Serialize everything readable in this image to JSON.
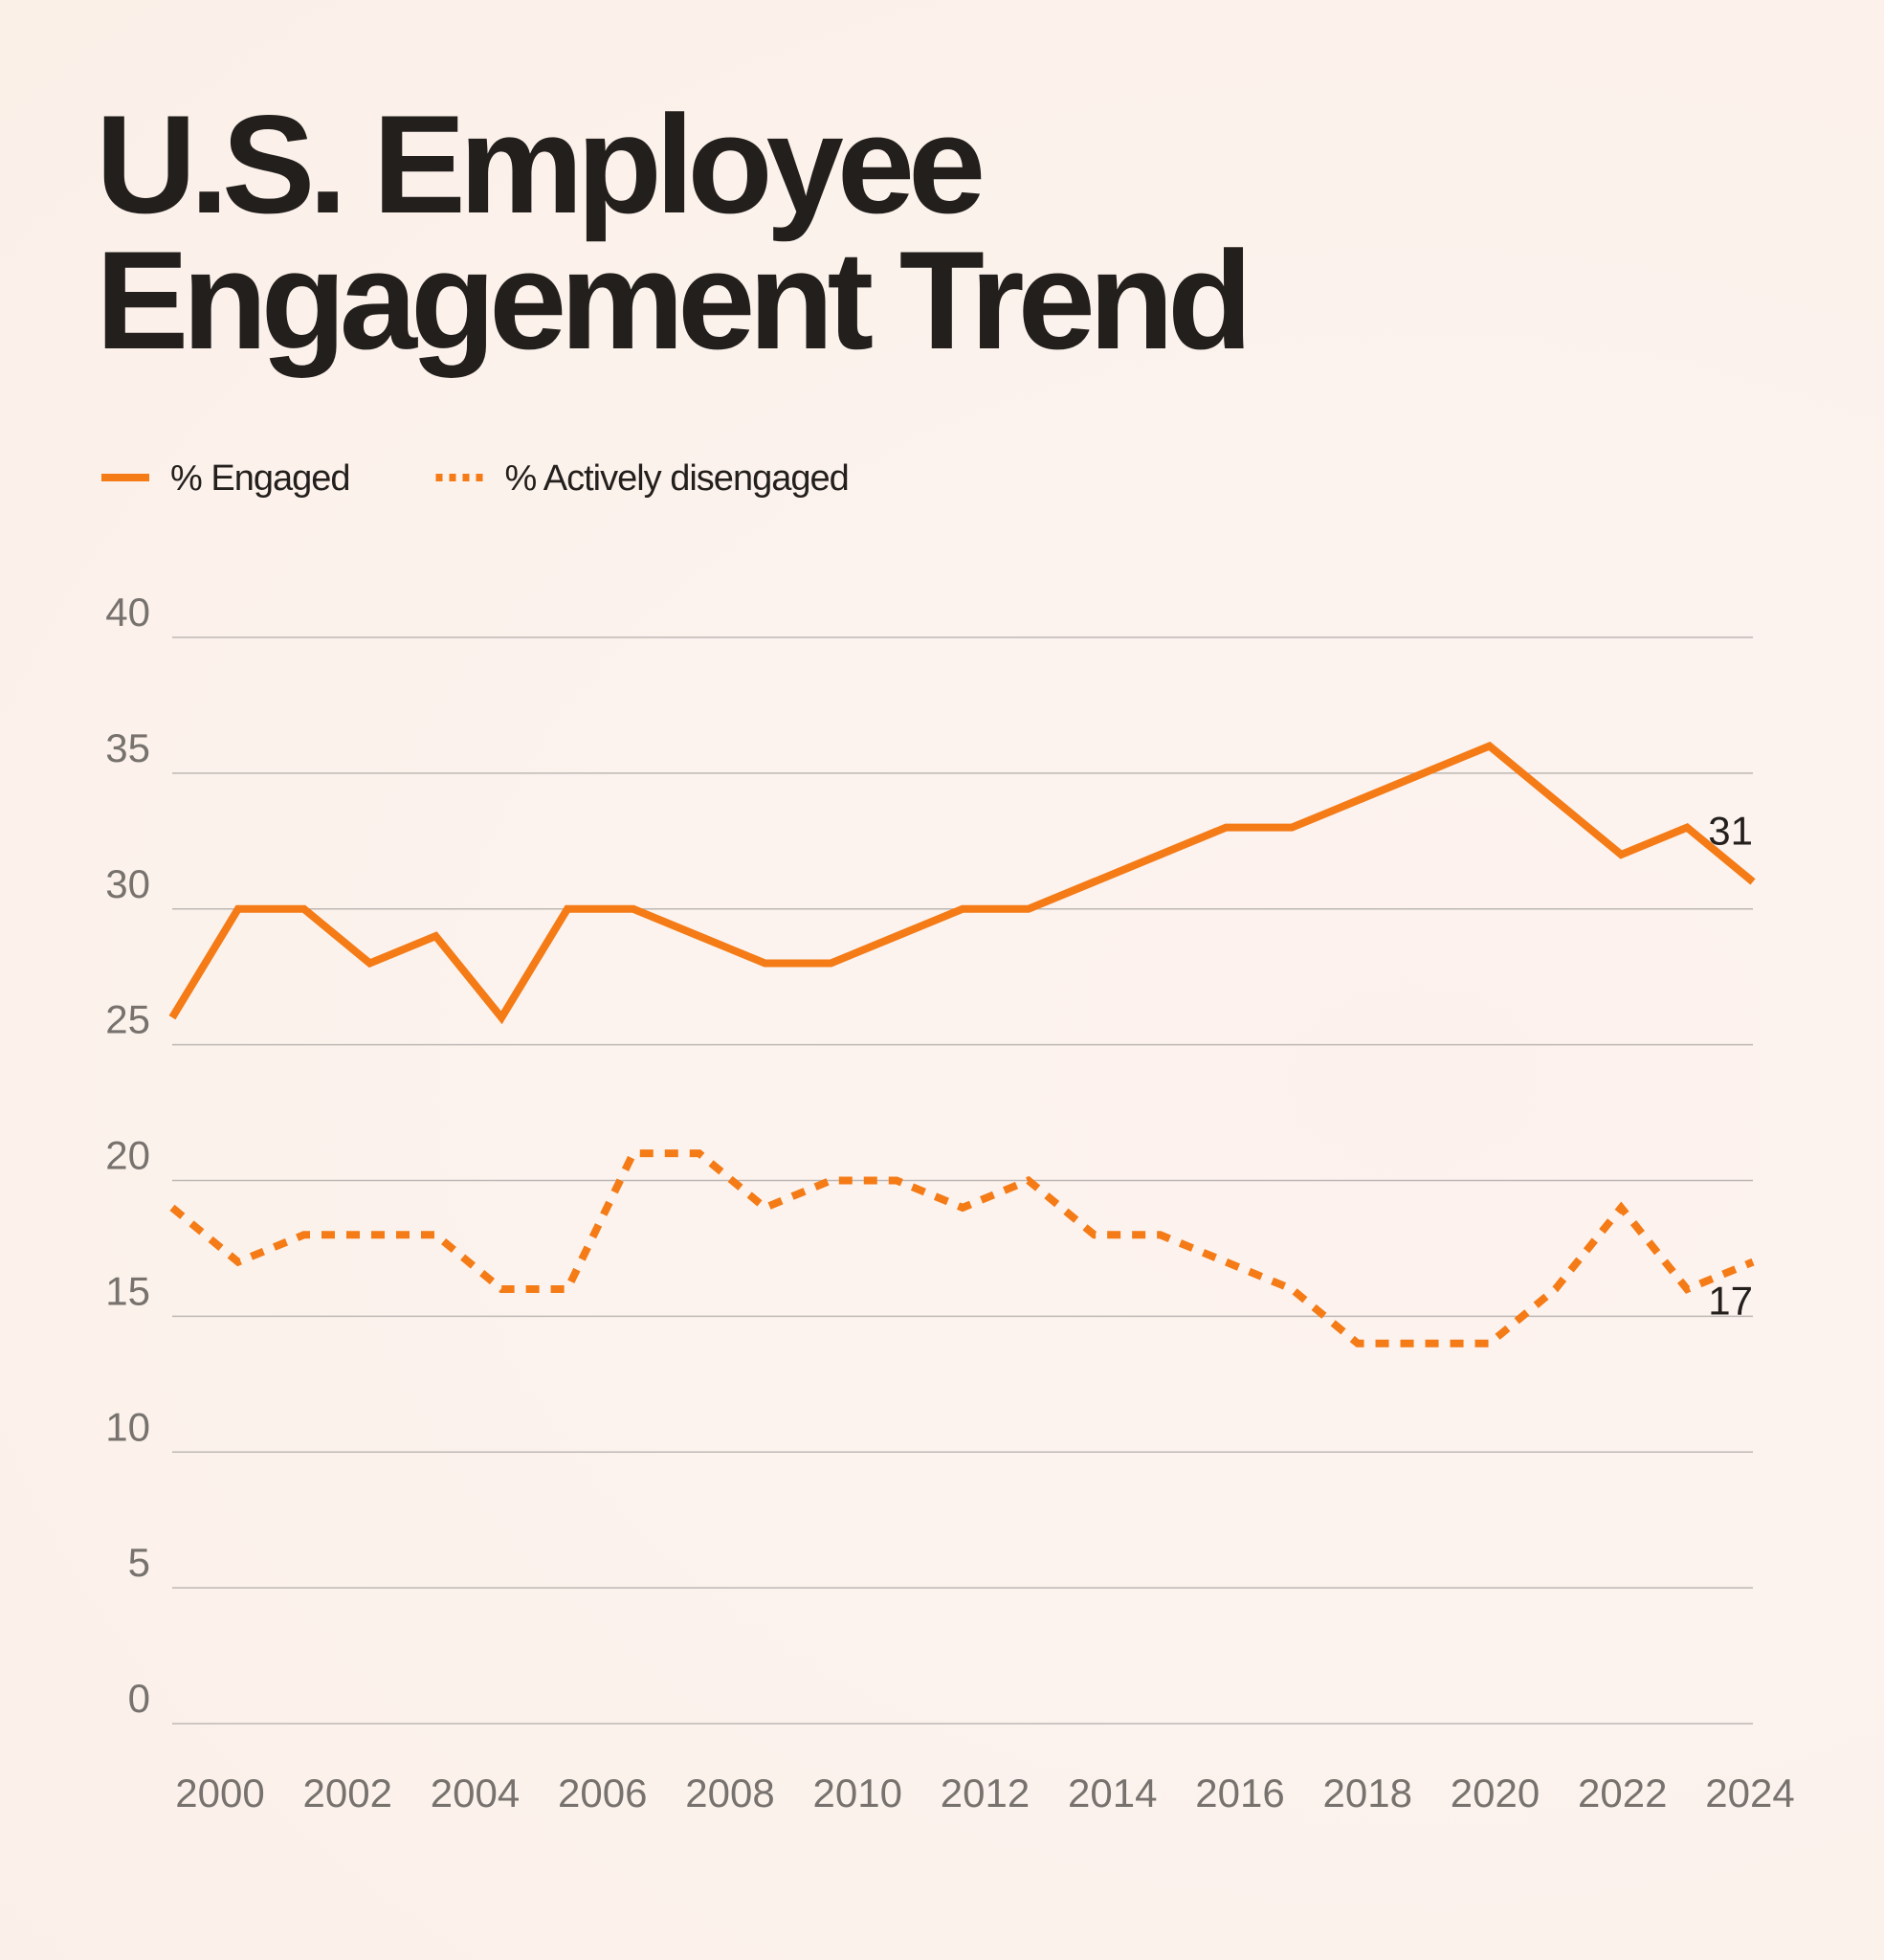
{
  "chart_data": {
    "type": "line",
    "title": [
      "U.S. Employee",
      "Engagement Trend"
    ],
    "x": [
      2000,
      2001,
      2002,
      2003,
      2004,
      2005,
      2006,
      2007,
      2008,
      2009,
      2010,
      2011,
      2012,
      2013,
      2014,
      2015,
      2016,
      2017,
      2018,
      2019,
      2020,
      2021,
      2022,
      2023,
      2024
    ],
    "series": [
      {
        "name": "% Engaged",
        "color": "#f47b16",
        "dash": "solid",
        "values": [
          26,
          30,
          30,
          28,
          29,
          26,
          30,
          30,
          29,
          28,
          28,
          29,
          30,
          30,
          31,
          32,
          33,
          33,
          34,
          35,
          36,
          34,
          32,
          33,
          31
        ]
      },
      {
        "name": "% Actively disengaged",
        "color": "#f47b16",
        "dash": "dashed",
        "values": [
          19,
          17,
          18,
          18,
          18,
          16,
          16,
          21,
          21,
          19,
          20,
          20,
          19,
          20,
          18,
          18,
          17,
          16,
          14,
          14,
          14,
          16,
          19,
          16,
          17
        ]
      }
    ],
    "xlim": [
      2000,
      2024
    ],
    "xticks": [
      2000,
      2002,
      2004,
      2006,
      2008,
      2010,
      2012,
      2014,
      2016,
      2018,
      2020,
      2022,
      2024
    ],
    "ylim": [
      0,
      40
    ],
    "yticks": [
      0,
      5,
      10,
      15,
      20,
      25,
      30,
      35,
      40
    ],
    "grid": true,
    "legend": "top-left",
    "label_last": true
  }
}
